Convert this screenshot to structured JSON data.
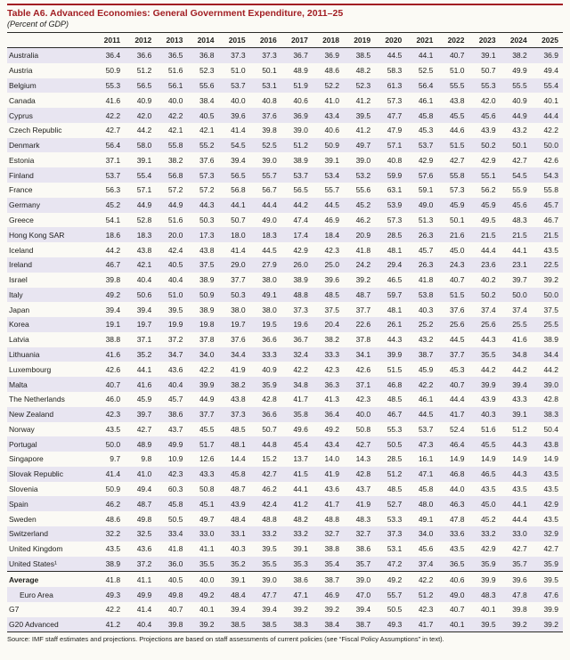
{
  "page": {
    "title": "Table A6. Advanced Economies: General Government Expenditure, 2011–25",
    "subtitle": "(Percent of GDP)",
    "source_note": "Source: IMF staff estimates and projections. Projections are based on staff assessments of current policies (see “Fiscal Policy Assumptions” in text).",
    "accent_color": "#a21e23",
    "stripe_color": "#e8e5f1"
  },
  "table": {
    "columns": [
      "2011",
      "2012",
      "2013",
      "2014",
      "2015",
      "2016",
      "2017",
      "2018",
      "2019",
      "2020",
      "2021",
      "2022",
      "2023",
      "2024",
      "2025"
    ],
    "rows": [
      {
        "label": "Australia",
        "values": [
          "36.4",
          "36.6",
          "36.5",
          "36.8",
          "37.3",
          "37.3",
          "36.7",
          "36.9",
          "38.5",
          "44.5",
          "44.1",
          "40.7",
          "39.1",
          "38.2",
          "36.9"
        ]
      },
      {
        "label": "Austria",
        "values": [
          "50.9",
          "51.2",
          "51.6",
          "52.3",
          "51.0",
          "50.1",
          "48.9",
          "48.6",
          "48.2",
          "58.3",
          "52.5",
          "51.0",
          "50.7",
          "49.9",
          "49.4"
        ]
      },
      {
        "label": "Belgium",
        "values": [
          "55.3",
          "56.5",
          "56.1",
          "55.6",
          "53.7",
          "53.1",
          "51.9",
          "52.2",
          "52.3",
          "61.3",
          "56.4",
          "55.5",
          "55.3",
          "55.5",
          "55.4"
        ]
      },
      {
        "label": "Canada",
        "values": [
          "41.6",
          "40.9",
          "40.0",
          "38.4",
          "40.0",
          "40.8",
          "40.6",
          "41.0",
          "41.2",
          "57.3",
          "46.1",
          "43.8",
          "42.0",
          "40.9",
          "40.1"
        ]
      },
      {
        "label": "Cyprus",
        "values": [
          "42.2",
          "42.0",
          "42.2",
          "40.5",
          "39.6",
          "37.6",
          "36.9",
          "43.4",
          "39.5",
          "47.7",
          "45.8",
          "45.5",
          "45.6",
          "44.9",
          "44.4"
        ]
      },
      {
        "label": "Czech Republic",
        "values": [
          "42.7",
          "44.2",
          "42.1",
          "42.1",
          "41.4",
          "39.8",
          "39.0",
          "40.6",
          "41.2",
          "47.9",
          "45.3",
          "44.6",
          "43.9",
          "43.2",
          "42.2"
        ]
      },
      {
        "label": "Denmark",
        "values": [
          "56.4",
          "58.0",
          "55.8",
          "55.2",
          "54.5",
          "52.5",
          "51.2",
          "50.9",
          "49.7",
          "57.1",
          "53.7",
          "51.5",
          "50.2",
          "50.1",
          "50.0"
        ]
      },
      {
        "label": "Estonia",
        "values": [
          "37.1",
          "39.1",
          "38.2",
          "37.6",
          "39.4",
          "39.0",
          "38.9",
          "39.1",
          "39.0",
          "40.8",
          "42.9",
          "42.7",
          "42.9",
          "42.7",
          "42.6"
        ]
      },
      {
        "label": "Finland",
        "values": [
          "53.7",
          "55.4",
          "56.8",
          "57.3",
          "56.5",
          "55.7",
          "53.7",
          "53.4",
          "53.2",
          "59.9",
          "57.6",
          "55.8",
          "55.1",
          "54.5",
          "54.3"
        ]
      },
      {
        "label": "France",
        "values": [
          "56.3",
          "57.1",
          "57.2",
          "57.2",
          "56.8",
          "56.7",
          "56.5",
          "55.7",
          "55.6",
          "63.1",
          "59.1",
          "57.3",
          "56.2",
          "55.9",
          "55.8"
        ]
      },
      {
        "label": "Germany",
        "values": [
          "45.2",
          "44.9",
          "44.9",
          "44.3",
          "44.1",
          "44.4",
          "44.2",
          "44.5",
          "45.2",
          "53.9",
          "49.0",
          "45.9",
          "45.9",
          "45.6",
          "45.7"
        ]
      },
      {
        "label": "Greece",
        "values": [
          "54.1",
          "52.8",
          "51.6",
          "50.3",
          "50.7",
          "49.0",
          "47.4",
          "46.9",
          "46.2",
          "57.3",
          "51.3",
          "50.1",
          "49.5",
          "48.3",
          "46.7"
        ]
      },
      {
        "label": "Hong Kong SAR",
        "values": [
          "18.6",
          "18.3",
          "20.0",
          "17.3",
          "18.0",
          "18.3",
          "17.4",
          "18.4",
          "20.9",
          "28.5",
          "26.3",
          "21.6",
          "21.5",
          "21.5",
          "21.5"
        ]
      },
      {
        "label": "Iceland",
        "values": [
          "44.2",
          "43.8",
          "42.4",
          "43.8",
          "41.4",
          "44.5",
          "42.9",
          "42.3",
          "41.8",
          "48.1",
          "45.7",
          "45.0",
          "44.4",
          "44.1",
          "43.5"
        ]
      },
      {
        "label": "Ireland",
        "values": [
          "46.7",
          "42.1",
          "40.5",
          "37.5",
          "29.0",
          "27.9",
          "26.0",
          "25.0",
          "24.2",
          "29.4",
          "26.3",
          "24.3",
          "23.6",
          "23.1",
          "22.5"
        ]
      },
      {
        "label": "Israel",
        "values": [
          "39.8",
          "40.4",
          "40.4",
          "38.9",
          "37.7",
          "38.0",
          "38.9",
          "39.6",
          "39.2",
          "46.5",
          "41.8",
          "40.7",
          "40.2",
          "39.7",
          "39.2"
        ]
      },
      {
        "label": "Italy",
        "values": [
          "49.2",
          "50.6",
          "51.0",
          "50.9",
          "50.3",
          "49.1",
          "48.8",
          "48.5",
          "48.7",
          "59.7",
          "53.8",
          "51.5",
          "50.2",
          "50.0",
          "50.0"
        ]
      },
      {
        "label": "Japan",
        "values": [
          "39.4",
          "39.4",
          "39.5",
          "38.9",
          "38.0",
          "38.0",
          "37.3",
          "37.5",
          "37.7",
          "48.1",
          "40.3",
          "37.6",
          "37.4",
          "37.4",
          "37.5"
        ]
      },
      {
        "label": "Korea",
        "values": [
          "19.1",
          "19.7",
          "19.9",
          "19.8",
          "19.7",
          "19.5",
          "19.6",
          "20.4",
          "22.6",
          "26.1",
          "25.2",
          "25.6",
          "25.6",
          "25.5",
          "25.5"
        ]
      },
      {
        "label": "Latvia",
        "values": [
          "38.8",
          "37.1",
          "37.2",
          "37.8",
          "37.6",
          "36.6",
          "36.7",
          "38.2",
          "37.8",
          "44.3",
          "43.2",
          "44.5",
          "44.3",
          "41.6",
          "38.9"
        ]
      },
      {
        "label": "Lithuania",
        "values": [
          "41.6",
          "35.2",
          "34.7",
          "34.0",
          "34.4",
          "33.3",
          "32.4",
          "33.3",
          "34.1",
          "39.9",
          "38.7",
          "37.7",
          "35.5",
          "34.8",
          "34.4"
        ]
      },
      {
        "label": "Luxembourg",
        "values": [
          "42.6",
          "44.1",
          "43.6",
          "42.2",
          "41.9",
          "40.9",
          "42.2",
          "42.3",
          "42.6",
          "51.5",
          "45.9",
          "45.3",
          "44.2",
          "44.2",
          "44.2"
        ]
      },
      {
        "label": "Malta",
        "values": [
          "40.7",
          "41.6",
          "40.4",
          "39.9",
          "38.2",
          "35.9",
          "34.8",
          "36.3",
          "37.1",
          "46.8",
          "42.2",
          "40.7",
          "39.9",
          "39.4",
          "39.0"
        ]
      },
      {
        "label": "The Netherlands",
        "values": [
          "46.0",
          "45.9",
          "45.7",
          "44.9",
          "43.8",
          "42.8",
          "41.7",
          "41.3",
          "42.3",
          "48.5",
          "46.1",
          "44.4",
          "43.9",
          "43.3",
          "42.8"
        ]
      },
      {
        "label": "New Zealand",
        "values": [
          "42.3",
          "39.7",
          "38.6",
          "37.7",
          "37.3",
          "36.6",
          "35.8",
          "36.4",
          "40.0",
          "46.7",
          "44.5",
          "41.7",
          "40.3",
          "39.1",
          "38.3"
        ]
      },
      {
        "label": "Norway",
        "values": [
          "43.5",
          "42.7",
          "43.7",
          "45.5",
          "48.5",
          "50.7",
          "49.6",
          "49.2",
          "50.8",
          "55.3",
          "53.7",
          "52.4",
          "51.6",
          "51.2",
          "50.4"
        ]
      },
      {
        "label": "Portugal",
        "values": [
          "50.0",
          "48.9",
          "49.9",
          "51.7",
          "48.1",
          "44.8",
          "45.4",
          "43.4",
          "42.7",
          "50.5",
          "47.3",
          "46.4",
          "45.5",
          "44.3",
          "43.8"
        ]
      },
      {
        "label": "Singapore",
        "values": [
          "9.7",
          "9.8",
          "10.9",
          "12.6",
          "14.4",
          "15.2",
          "13.7",
          "14.0",
          "14.3",
          "28.5",
          "16.1",
          "14.9",
          "14.9",
          "14.9",
          "14.9"
        ]
      },
      {
        "label": "Slovak Republic",
        "values": [
          "41.4",
          "41.0",
          "42.3",
          "43.3",
          "45.8",
          "42.7",
          "41.5",
          "41.9",
          "42.8",
          "51.2",
          "47.1",
          "46.8",
          "46.5",
          "44.3",
          "43.5"
        ]
      },
      {
        "label": "Slovenia",
        "values": [
          "50.9",
          "49.4",
          "60.3",
          "50.8",
          "48.7",
          "46.2",
          "44.1",
          "43.6",
          "43.7",
          "48.5",
          "45.8",
          "44.0",
          "43.5",
          "43.5",
          "43.5"
        ]
      },
      {
        "label": "Spain",
        "values": [
          "46.2",
          "48.7",
          "45.8",
          "45.1",
          "43.9",
          "42.4",
          "41.2",
          "41.7",
          "41.9",
          "52.7",
          "48.0",
          "46.3",
          "45.0",
          "44.1",
          "42.9"
        ]
      },
      {
        "label": "Sweden",
        "values": [
          "48.6",
          "49.8",
          "50.5",
          "49.7",
          "48.4",
          "48.8",
          "48.2",
          "48.8",
          "48.3",
          "53.3",
          "49.1",
          "47.8",
          "45.2",
          "44.4",
          "43.5"
        ]
      },
      {
        "label": "Switzerland",
        "values": [
          "32.2",
          "32.5",
          "33.4",
          "33.0",
          "33.1",
          "33.2",
          "33.2",
          "32.7",
          "32.7",
          "37.3",
          "34.0",
          "33.6",
          "33.2",
          "33.0",
          "32.9"
        ]
      },
      {
        "label": "United Kingdom",
        "values": [
          "43.5",
          "43.6",
          "41.8",
          "41.1",
          "40.3",
          "39.5",
          "39.1",
          "38.8",
          "38.6",
          "53.1",
          "45.6",
          "43.5",
          "42.9",
          "42.7",
          "42.7"
        ]
      },
      {
        "label": "United States¹",
        "values": [
          "38.9",
          "37.2",
          "36.0",
          "35.5",
          "35.2",
          "35.5",
          "35.3",
          "35.4",
          "35.7",
          "47.2",
          "37.4",
          "36.5",
          "35.9",
          "35.7",
          "35.9"
        ]
      },
      {
        "label": "Average",
        "bold": true,
        "section_start": true,
        "values": [
          "41.8",
          "41.1",
          "40.5",
          "40.0",
          "39.1",
          "39.0",
          "38.6",
          "38.7",
          "39.0",
          "49.2",
          "42.2",
          "40.6",
          "39.9",
          "39.6",
          "39.5"
        ]
      },
      {
        "label": "Euro Area",
        "indent": true,
        "values": [
          "49.3",
          "49.9",
          "49.8",
          "49.2",
          "48.4",
          "47.7",
          "47.1",
          "46.9",
          "47.0",
          "55.7",
          "51.2",
          "49.0",
          "48.3",
          "47.8",
          "47.6"
        ]
      },
      {
        "label": "G7",
        "values": [
          "42.2",
          "41.4",
          "40.7",
          "40.1",
          "39.4",
          "39.4",
          "39.2",
          "39.2",
          "39.4",
          "50.5",
          "42.3",
          "40.7",
          "40.1",
          "39.8",
          "39.9"
        ]
      },
      {
        "label": "G20 Advanced",
        "values": [
          "41.2",
          "40.4",
          "39.8",
          "39.2",
          "38.5",
          "38.5",
          "38.3",
          "38.4",
          "38.7",
          "49.3",
          "41.7",
          "40.1",
          "39.5",
          "39.2",
          "39.2"
        ]
      }
    ]
  }
}
